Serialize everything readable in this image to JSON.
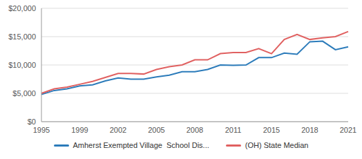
{
  "chart_data": {
    "type": "line",
    "categories": [
      "1995",
      null,
      null,
      "1999",
      null,
      null,
      "2002",
      null,
      null,
      "2005",
      null,
      null,
      "2008",
      null,
      null,
      "2011",
      null,
      null,
      "2015",
      null,
      null,
      "2018",
      null,
      null,
      "2021"
    ],
    "series": [
      {
        "name": "Amherst Exempted Village  School Dis...",
        "color": "#2b7bba",
        "values": [
          4800,
          5500,
          5800,
          6300,
          6500,
          7200,
          7700,
          7500,
          7500,
          7900,
          8200,
          8800,
          8800,
          9200,
          10000,
          9950,
          10000,
          11300,
          11300,
          12100,
          11900,
          14100,
          14200,
          12700,
          13200
        ]
      },
      {
        "name": "(OH) State Median",
        "color": "#e06060",
        "values": [
          5000,
          5800,
          6100,
          6600,
          7100,
          7800,
          8500,
          8500,
          8400,
          9200,
          9700,
          10000,
          10900,
          10900,
          12000,
          12200,
          12200,
          12900,
          12000,
          14500,
          15400,
          14500,
          14800,
          15000,
          15900
        ]
      }
    ],
    "ylim": [
      0,
      20000
    ],
    "yticks": [
      {
        "value": 0,
        "label": "$0"
      },
      {
        "value": 5000,
        "label": "$5,000"
      },
      {
        "value": 10000,
        "label": "$10,000"
      },
      {
        "value": 15000,
        "label": "$15,000"
      },
      {
        "value": 20000,
        "label": "$20,000"
      }
    ],
    "grid": true,
    "legend": "bottom"
  }
}
